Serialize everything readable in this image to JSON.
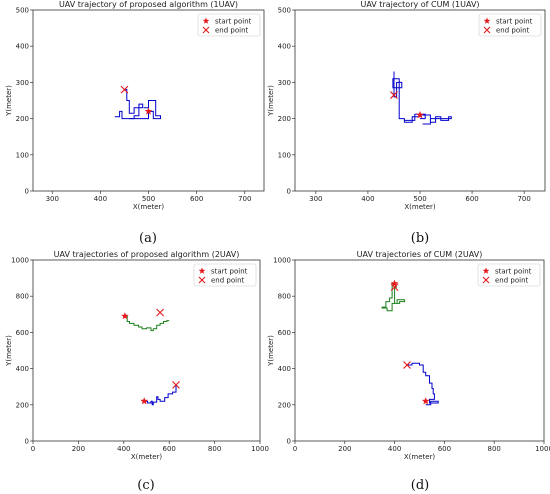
{
  "chart_data": [
    {
      "type": "line",
      "title": "UAV trajectory of proposed algorithm (1UAV)",
      "xlabel": "X(meter)",
      "ylabel": "Y(meter)",
      "xlim": [
        260,
        740
      ],
      "ylim": [
        0,
        500
      ],
      "xticks": [
        300,
        400,
        500,
        600,
        700
      ],
      "yticks": [
        0,
        100,
        200,
        300,
        400,
        500
      ],
      "caption": "(a)",
      "legend": {
        "position": "top-right",
        "entries": [
          "start point",
          "end point"
        ]
      },
      "series": [
        {
          "color": "#0000cc",
          "points": [
            [
              430,
              205
            ],
            [
              440,
              205
            ],
            [
              440,
              220
            ],
            [
              445,
              220
            ],
            [
              445,
              200
            ],
            [
              470,
              200
            ],
            [
              470,
              208
            ],
            [
              480,
              208
            ],
            [
              480,
              240
            ],
            [
              488,
              240
            ],
            [
              488,
              230
            ],
            [
              470,
              230
            ],
            [
              470,
              215
            ],
            [
              460,
              215
            ],
            [
              460,
              250
            ],
            [
              455,
              250
            ],
            [
              455,
              280
            ],
            [
              450,
              280
            ]
          ]
        },
        {
          "color": "#0000cc",
          "points": [
            [
              460,
              200
            ],
            [
              500,
              200
            ],
            [
              500,
              220
            ],
            [
              510,
              220
            ],
            [
              510,
              200
            ],
            [
              525,
              200
            ],
            [
              525,
              208
            ],
            [
              515,
              208
            ],
            [
              515,
              250
            ],
            [
              500,
              250
            ],
            [
              500,
              230
            ],
            [
              490,
              230
            ]
          ]
        }
      ],
      "start_points": [
        [
          500,
          220
        ]
      ],
      "end_points": [
        [
          450,
          280
        ]
      ]
    },
    {
      "type": "line",
      "title": "UAV trajectory of CUM (1UAV)",
      "xlabel": "X(meter)",
      "ylabel": "Y(meter)",
      "xlim": [
        260,
        740
      ],
      "ylim": [
        0,
        500
      ],
      "xticks": [
        300,
        400,
        500,
        600,
        700
      ],
      "yticks": [
        0,
        100,
        200,
        300,
        400,
        500
      ],
      "caption": "(b)",
      "legend": {
        "position": "top-right",
        "entries": [
          "start point",
          "end point"
        ]
      },
      "series": [
        {
          "color": "#0000cc",
          "points": [
            [
              450,
              330
            ],
            [
              450,
              260
            ],
            [
              455,
              260
            ],
            [
              455,
              300
            ],
            [
              465,
              300
            ],
            [
              465,
              285
            ],
            [
              448,
              285
            ],
            [
              448,
              310
            ],
            [
              460,
              310
            ],
            [
              460,
              200
            ],
            [
              470,
              200
            ],
            [
              470,
              190
            ],
            [
              485,
              190
            ],
            [
              485,
              205
            ],
            [
              500,
              205
            ],
            [
              500,
              210
            ],
            [
              520,
              210
            ],
            [
              520,
              190
            ],
            [
              530,
              190
            ],
            [
              530,
              205
            ],
            [
              540,
              205
            ],
            [
              540,
              195
            ],
            [
              555,
              195
            ],
            [
              555,
              205
            ],
            [
              560,
              205
            ],
            [
              560,
              200
            ],
            [
              520,
              200
            ],
            [
              520,
              185
            ],
            [
              505,
              185
            ]
          ]
        },
        {
          "color": "#0000cc",
          "points": [
            [
              470,
              195
            ],
            [
              490,
              195
            ],
            [
              490,
              212
            ],
            [
              510,
              212
            ],
            [
              510,
              200
            ],
            [
              500,
              200
            ]
          ]
        }
      ],
      "start_points": [
        [
          500,
          210
        ]
      ],
      "end_points": [
        [
          450,
          265
        ]
      ]
    },
    {
      "type": "line",
      "title": "UAV trajectories of proposed algorithm (2UAV)",
      "xlabel": "X(meter)",
      "ylabel": "Y(meter)",
      "xlim": [
        0,
        1000
      ],
      "ylim": [
        0,
        1000
      ],
      "xticks": [
        0,
        200,
        400,
        600,
        800,
        1000
      ],
      "yticks": [
        0,
        200,
        400,
        600,
        800,
        1000
      ],
      "caption": "(c)",
      "legend": {
        "position": "top-right",
        "entries": [
          "start point",
          "end point"
        ]
      },
      "series": [
        {
          "color": "#1a7f1a",
          "points": [
            [
              405,
              690
            ],
            [
              415,
              690
            ],
            [
              415,
              660
            ],
            [
              425,
              660
            ],
            [
              425,
              650
            ],
            [
              445,
              650
            ],
            [
              445,
              640
            ],
            [
              465,
              640
            ],
            [
              465,
              630
            ],
            [
              480,
              630
            ],
            [
              480,
              620
            ],
            [
              500,
              620
            ],
            [
              500,
              625
            ],
            [
              520,
              625
            ],
            [
              520,
              610
            ],
            [
              530,
              610
            ],
            [
              530,
              620
            ],
            [
              545,
              620
            ],
            [
              545,
              640
            ],
            [
              560,
              640
            ],
            [
              560,
              650
            ],
            [
              575,
              650
            ],
            [
              575,
              660
            ],
            [
              590,
              660
            ],
            [
              590,
              665
            ],
            [
              600,
              665
            ]
          ]
        },
        {
          "color": "#0000cc",
          "points": [
            [
              490,
              220
            ],
            [
              505,
              220
            ],
            [
              505,
              210
            ],
            [
              520,
              210
            ],
            [
              520,
              220
            ],
            [
              525,
              220
            ],
            [
              525,
              200
            ],
            [
              530,
              200
            ],
            [
              530,
              215
            ],
            [
              545,
              215
            ],
            [
              545,
              245
            ],
            [
              550,
              245
            ],
            [
              550,
              230
            ],
            [
              560,
              230
            ],
            [
              560,
              220
            ],
            [
              580,
              220
            ],
            [
              580,
              240
            ],
            [
              595,
              240
            ],
            [
              595,
              260
            ],
            [
              615,
              260
            ],
            [
              615,
              270
            ],
            [
              630,
              270
            ],
            [
              630,
              310
            ]
          ]
        }
      ],
      "start_points": [
        [
          405,
          690
        ],
        [
          490,
          220
        ]
      ],
      "end_points": [
        [
          560,
          710
        ],
        [
          630,
          310
        ]
      ]
    },
    {
      "type": "line",
      "title": "UAV trajectories of CUM (2UAV)",
      "xlabel": "X(meter)",
      "ylabel": "Y(meter)",
      "xlim": [
        0,
        1000
      ],
      "ylim": [
        0,
        1000
      ],
      "xticks": [
        0,
        200,
        400,
        600,
        800,
        1000
      ],
      "yticks": [
        0,
        200,
        400,
        600,
        800,
        1000
      ],
      "caption": "(d)",
      "legend": {
        "position": "top-right",
        "entries": [
          "start point",
          "end point"
        ]
      },
      "series": [
        {
          "color": "#1a7f1a",
          "points": [
            [
              400,
              870
            ],
            [
              390,
              870
            ],
            [
              390,
              790
            ],
            [
              380,
              790
            ],
            [
              380,
              770
            ],
            [
              365,
              770
            ],
            [
              365,
              740
            ],
            [
              350,
              740
            ],
            [
              350,
              735
            ],
            [
              370,
              735
            ],
            [
              370,
              720
            ],
            [
              390,
              720
            ],
            [
              390,
              760
            ],
            [
              410,
              760
            ],
            [
              410,
              780
            ],
            [
              440,
              780
            ],
            [
              440,
              770
            ],
            [
              420,
              770
            ],
            [
              420,
              760
            ],
            [
              400,
              760
            ],
            [
              400,
              850
            ],
            [
              410,
              850
            ]
          ]
        },
        {
          "color": "#0000cc",
          "points": [
            [
              450,
              420
            ],
            [
              470,
              420
            ],
            [
              470,
              430
            ],
            [
              500,
              430
            ],
            [
              500,
              420
            ],
            [
              515,
              420
            ],
            [
              515,
              380
            ],
            [
              525,
              380
            ],
            [
              525,
              360
            ],
            [
              540,
              360
            ],
            [
              540,
              320
            ],
            [
              550,
              320
            ],
            [
              550,
              290
            ],
            [
              555,
              290
            ],
            [
              555,
              260
            ],
            [
              560,
              260
            ],
            [
              560,
              230
            ],
            [
              540,
              230
            ],
            [
              540,
              210
            ],
            [
              575,
              210
            ],
            [
              575,
              220
            ],
            [
              545,
              220
            ],
            [
              545,
              200
            ],
            [
              525,
              200
            ]
          ]
        }
      ],
      "start_points": [
        [
          400,
          870
        ],
        [
          525,
          220
        ]
      ],
      "end_points": [
        [
          450,
          420
        ],
        [
          400,
          850
        ]
      ]
    }
  ],
  "palette": {
    "marker": "#e41a1c",
    "axis": "#333333"
  }
}
